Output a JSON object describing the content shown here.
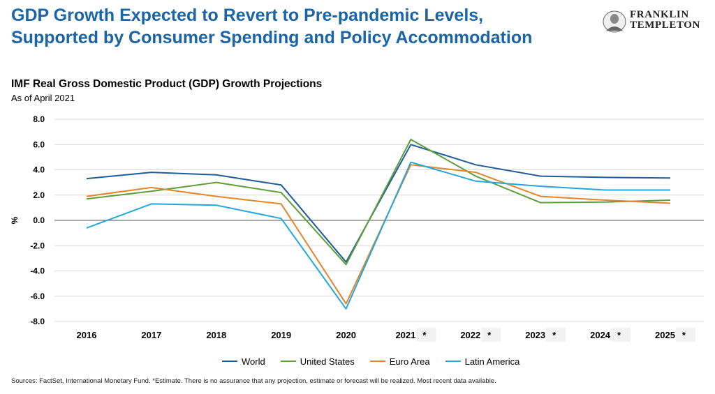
{
  "header": {
    "headline_line1": "GDP Growth Expected to Revert to Pre-pandemic Levels,",
    "headline_line2": "Supported by Consumer Spending and Policy Accommodation",
    "logo_line1": "FRANKLIN",
    "logo_line2": "TEMPLETON"
  },
  "chart_data": {
    "type": "line",
    "title": "IMF Real Gross Domestic Product (GDP) Growth Projections",
    "subtitle": "As of April 2021",
    "ylabel": "%",
    "xlabel": "",
    "ylim": [
      -8,
      8
    ],
    "yticks": [
      "8.0",
      "6.0",
      "4.0",
      "2.0",
      "0.0",
      "-2.0",
      "-4.0",
      "-6.0",
      "-8.0"
    ],
    "categories": [
      "2016",
      "2017",
      "2018",
      "2019",
      "2020",
      "2021 *",
      "2022 *",
      "2023 *",
      "2024 *",
      "2025 *"
    ],
    "grid": true,
    "legend_position": "bottom",
    "series": [
      {
        "name": "World",
        "color": "#1f5c99",
        "values": [
          3.3,
          3.8,
          3.6,
          2.8,
          -3.3,
          6.0,
          4.4,
          3.5,
          3.4,
          3.35
        ]
      },
      {
        "name": "United States",
        "color": "#5e9e3a",
        "values": [
          1.7,
          2.3,
          3.0,
          2.2,
          -3.5,
          6.4,
          3.5,
          1.4,
          1.45,
          1.6
        ]
      },
      {
        "name": "Euro Area",
        "color": "#e3852b",
        "values": [
          1.9,
          2.6,
          1.9,
          1.3,
          -6.6,
          4.4,
          3.8,
          1.9,
          1.6,
          1.35
        ]
      },
      {
        "name": "Latin America",
        "color": "#25a6dd",
        "values": [
          -0.6,
          1.3,
          1.2,
          0.15,
          -7.0,
          4.6,
          3.1,
          2.7,
          2.4,
          2.4
        ]
      }
    ]
  },
  "footer": {
    "sources": "Sources: FactSet, International Monetary Fund. *Estimate. There is no assurance that any projection, estimate or forecast will be realized. Most recent data available."
  }
}
